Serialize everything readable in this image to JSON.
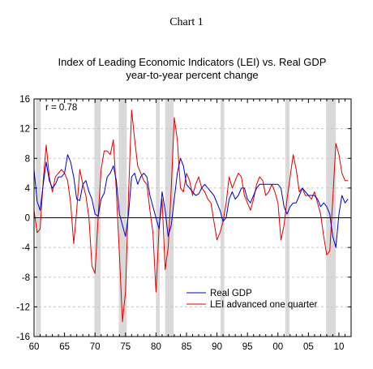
{
  "header": {
    "title": "Chart 1"
  },
  "chart_data": {
    "type": "line",
    "title_lines": [
      "Index of Leading Economic Indicators (LEI) vs. Real GDP",
      "year-to-year percent change"
    ],
    "annotation": "r = 0.78",
    "xlabel": "",
    "ylabel": "",
    "xlim": [
      1960,
      2012
    ],
    "ylim": [
      -16,
      16
    ],
    "x_ticks": [
      1960,
      1965,
      1970,
      1975,
      1980,
      1985,
      1990,
      1995,
      2000,
      2005,
      2010
    ],
    "x_tick_labels": [
      "60",
      "65",
      "70",
      "75",
      "80",
      "85",
      "90",
      "95",
      "00",
      "05",
      "10"
    ],
    "y_ticks": [
      -16,
      -12,
      -8,
      -4,
      0,
      4,
      8,
      12,
      16
    ],
    "y_tick_labels": [
      "-16",
      "-12",
      "-8",
      "-4",
      "0",
      "4",
      "8",
      "12",
      "16"
    ],
    "grid": "horizontal dashed",
    "legend_position": "bottom-center",
    "recessions": [
      [
        1960.3,
        1961.1
      ],
      [
        1969.9,
        1970.9
      ],
      [
        1973.9,
        1975.2
      ],
      [
        1980.0,
        1980.6
      ],
      [
        1981.5,
        1982.9
      ],
      [
        1990.6,
        1991.2
      ],
      [
        2001.2,
        2001.9
      ],
      [
        2007.9,
        2009.5
      ]
    ],
    "colors": {
      "recession": "#d9d9d9",
      "grid": "#c8c8c8"
    },
    "series": [
      {
        "name": "Real GDP",
        "color": "#0000cc",
        "x": [
          1960.0,
          1960.5,
          1961.0,
          1961.5,
          1962.0,
          1962.5,
          1963.0,
          1963.5,
          1964.0,
          1964.5,
          1965.0,
          1965.5,
          1966.0,
          1966.5,
          1967.0,
          1967.5,
          1968.0,
          1968.5,
          1969.0,
          1969.5,
          1970.0,
          1970.5,
          1971.0,
          1971.5,
          1972.0,
          1972.5,
          1973.0,
          1973.5,
          1974.0,
          1974.5,
          1975.0,
          1975.5,
          1976.0,
          1976.5,
          1977.0,
          1977.5,
          1978.0,
          1978.5,
          1979.0,
          1979.5,
          1980.0,
          1980.5,
          1981.0,
          1981.5,
          1982.0,
          1982.5,
          1983.0,
          1983.5,
          1984.0,
          1984.5,
          1985.0,
          1985.5,
          1986.0,
          1986.5,
          1987.0,
          1987.5,
          1988.0,
          1988.5,
          1989.0,
          1989.5,
          1990.0,
          1990.5,
          1991.0,
          1991.5,
          1992.0,
          1992.5,
          1993.0,
          1993.5,
          1994.0,
          1994.5,
          1995.0,
          1995.5,
          1996.0,
          1996.5,
          1997.0,
          1997.5,
          1998.0,
          1998.5,
          1999.0,
          1999.5,
          2000.0,
          2000.5,
          2001.0,
          2001.5,
          2002.0,
          2002.5,
          2003.0,
          2003.5,
          2004.0,
          2004.5,
          2005.0,
          2005.5,
          2006.0,
          2006.5,
          2007.0,
          2007.5,
          2008.0,
          2008.5,
          2009.0,
          2009.5,
          2010.0,
          2010.5,
          2011.0,
          2011.5
        ],
        "values": [
          6.5,
          2.2,
          1.0,
          4.5,
          7.5,
          5.0,
          4.0,
          4.5,
          5.5,
          5.5,
          6.0,
          8.5,
          7.5,
          5.5,
          2.5,
          2.3,
          4.5,
          5.0,
          3.5,
          2.5,
          0.5,
          0.2,
          2.5,
          3.3,
          5.5,
          6.0,
          7.0,
          5.0,
          0.5,
          -1.0,
          -2.5,
          0.5,
          5.5,
          6.0,
          4.5,
          5.5,
          6.0,
          5.5,
          3.0,
          1.5,
          0.0,
          -1.5,
          3.5,
          1.0,
          -2.5,
          -1.0,
          2.5,
          6.0,
          8.0,
          7.0,
          4.5,
          4.0,
          3.5,
          3.0,
          3.2,
          4.0,
          4.5,
          4.0,
          3.5,
          3.0,
          2.0,
          1.0,
          -0.5,
          0.0,
          2.5,
          3.5,
          2.5,
          3.0,
          4.0,
          4.0,
          2.5,
          2.0,
          3.0,
          4.0,
          4.5,
          4.5,
          4.5,
          4.5,
          4.5,
          4.5,
          4.5,
          4.0,
          1.5,
          0.5,
          1.5,
          2.0,
          2.0,
          3.0,
          4.0,
          3.5,
          3.0,
          3.0,
          3.0,
          2.5,
          1.5,
          2.0,
          1.5,
          0.5,
          -2.5,
          -4.0,
          0.5,
          3.0,
          2.0,
          2.5
        ]
      },
      {
        "name": "LEI advanced one quarter",
        "color": "#dd0000",
        "x": [
          1960.0,
          1960.5,
          1961.0,
          1961.5,
          1962.0,
          1962.5,
          1963.0,
          1963.5,
          1964.0,
          1964.5,
          1965.0,
          1965.5,
          1966.0,
          1966.5,
          1967.0,
          1967.5,
          1968.0,
          1968.5,
          1969.0,
          1969.5,
          1970.0,
          1970.5,
          1971.0,
          1971.5,
          1972.0,
          1972.5,
          1973.0,
          1973.5,
          1974.0,
          1974.5,
          1975.0,
          1975.5,
          1976.0,
          1976.5,
          1977.0,
          1977.5,
          1978.0,
          1978.5,
          1979.0,
          1979.5,
          1980.0,
          1980.5,
          1981.0,
          1981.5,
          1982.0,
          1982.5,
          1983.0,
          1983.5,
          1984.0,
          1984.5,
          1985.0,
          1985.5,
          1986.0,
          1986.5,
          1987.0,
          1987.5,
          1988.0,
          1988.5,
          1989.0,
          1989.5,
          1990.0,
          1990.5,
          1991.0,
          1991.5,
          1992.0,
          1992.5,
          1993.0,
          1993.5,
          1994.0,
          1994.5,
          1995.0,
          1995.5,
          1996.0,
          1996.5,
          1997.0,
          1997.5,
          1998.0,
          1998.5,
          1999.0,
          1999.5,
          2000.0,
          2000.5,
          2001.0,
          2001.5,
          2002.0,
          2002.5,
          2003.0,
          2003.5,
          2004.0,
          2004.5,
          2005.0,
          2005.5,
          2006.0,
          2006.5,
          2007.0,
          2007.5,
          2008.0,
          2008.5,
          2009.0,
          2009.5,
          2010.0,
          2010.5,
          2011.0,
          2011.5
        ],
        "values": [
          1.0,
          -2.0,
          -1.5,
          5.0,
          9.8,
          5.5,
          3.5,
          5.5,
          6.0,
          6.5,
          6.0,
          5.0,
          2.0,
          -3.5,
          1.0,
          6.5,
          4.5,
          3.0,
          0.0,
          -6.5,
          -7.5,
          0.0,
          6.5,
          9.0,
          9.0,
          8.5,
          10.5,
          3.5,
          -5.0,
          -14.0,
          -10.0,
          3.0,
          14.5,
          10.5,
          7.0,
          6.0,
          5.0,
          4.5,
          1.0,
          -2.0,
          -10.0,
          -1.5,
          2.5,
          -7.0,
          -4.0,
          4.0,
          13.5,
          10.5,
          4.0,
          3.5,
          6.0,
          5.0,
          3.0,
          4.5,
          5.5,
          4.0,
          3.5,
          2.5,
          2.0,
          -0.5,
          -3.0,
          -2.0,
          -0.5,
          2.0,
          5.5,
          4.0,
          5.0,
          6.0,
          5.5,
          3.0,
          2.0,
          1.0,
          2.5,
          4.5,
          5.5,
          5.0,
          3.0,
          3.5,
          4.5,
          3.5,
          2.0,
          -3.0,
          -1.0,
          2.5,
          5.5,
          8.5,
          6.5,
          3.5,
          4.0,
          3.0,
          3.0,
          2.5,
          3.5,
          2.0,
          0.5,
          -2.5,
          -5.0,
          -4.5,
          2.5,
          10.0,
          8.5,
          6.0,
          5.0,
          5.0
        ]
      }
    ]
  }
}
